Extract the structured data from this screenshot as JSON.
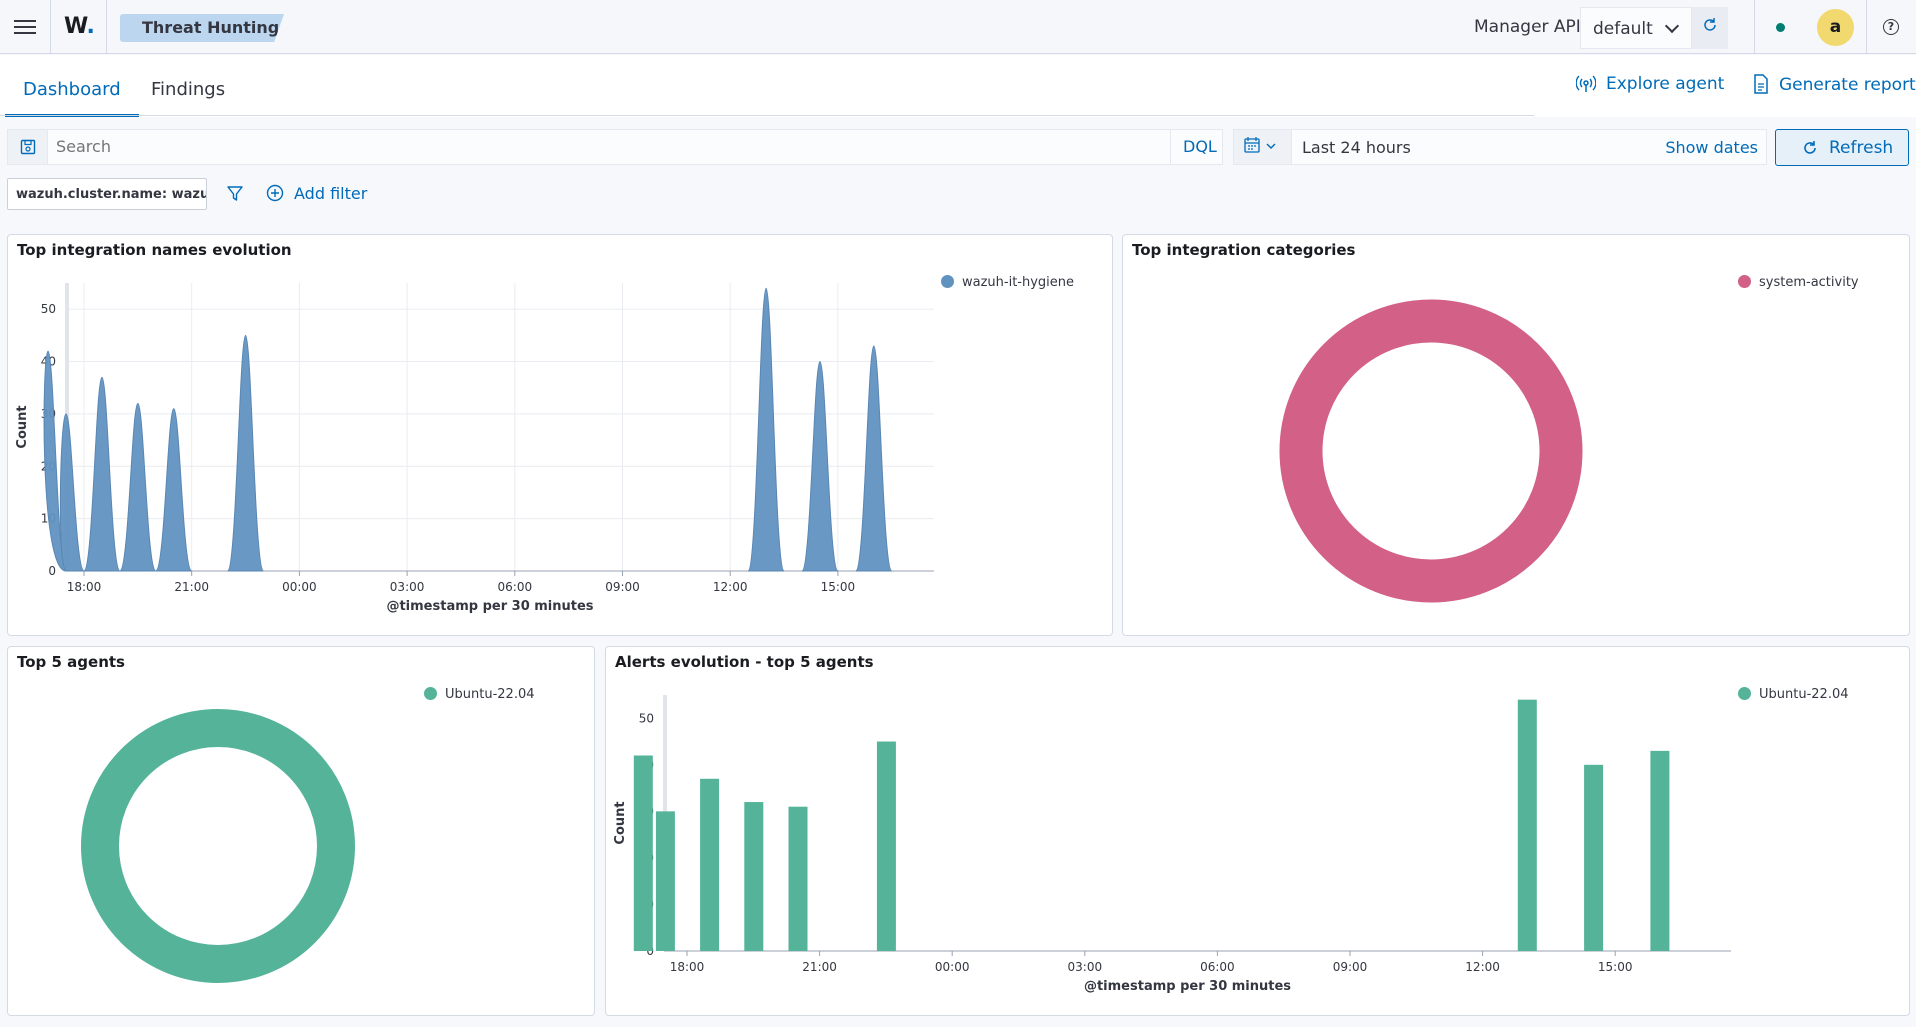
{
  "header": {
    "logo": "W",
    "logo_dot": ".",
    "breadcrumb": "Threat Hunting",
    "manager_label": "Manager API",
    "manager_value": "default",
    "avatar_initial": "a",
    "help": "?"
  },
  "tabs": [
    {
      "label": "Dashboard",
      "active": true
    },
    {
      "label": "Findings",
      "active": false
    }
  ],
  "actions": {
    "explore_agent": "Explore agent",
    "generate_report": "Generate report"
  },
  "search": {
    "placeholder": "Search",
    "dql": "DQL"
  },
  "date": {
    "range": "Last 24 hours",
    "show_dates": "Show dates",
    "refresh": "Refresh"
  },
  "filters": {
    "pill": "wazuh.cluster.name: wazuh",
    "add_filter": "Add filter"
  },
  "colors": {
    "accent": "#006bb8",
    "series_blue": "#6092c0",
    "series_pink": "#d36086",
    "series_green": "#54b399"
  },
  "panels": {
    "integration_evolution": {
      "title": "Top integration names evolution",
      "legend": "wazuh-it-hygiene"
    },
    "integration_categories": {
      "title": "Top integration categories",
      "legend": "system-activity"
    },
    "top_agents": {
      "title": "Top 5 agents",
      "legend": "Ubuntu-22.04"
    },
    "alerts_evolution": {
      "title": "Alerts evolution - top 5 agents",
      "legend": "Ubuntu-22.04"
    }
  },
  "chart_data": [
    {
      "type": "area",
      "title": "Top integration names evolution",
      "xlabel": "@timestamp per 30 minutes",
      "ylabel": "Count",
      "xticks": [
        "18:00",
        "21:00",
        "00:00",
        "03:00",
        "06:00",
        "09:00",
        "12:00",
        "15:00"
      ],
      "yticks": [
        0,
        10,
        20,
        30,
        40,
        50
      ],
      "ylim": [
        0,
        55
      ],
      "series": [
        {
          "name": "wazuh-it-hygiene",
          "points": [
            [
              17.5,
              30
            ],
            [
              18.5,
              37
            ],
            [
              19.5,
              32
            ],
            [
              20.5,
              31
            ],
            [
              22.5,
              45
            ],
            [
              13.0,
              54
            ],
            [
              14.5,
              40
            ],
            [
              16.0,
              43
            ],
            [
              17.0,
              42
            ]
          ]
        }
      ],
      "legend": "top-right"
    },
    {
      "type": "pie",
      "title": "Top integration categories",
      "labels": [
        "system-activity"
      ],
      "values": [
        100
      ],
      "donut": true,
      "legend": "top-right"
    },
    {
      "type": "pie",
      "title": "Top 5 agents",
      "labels": [
        "Ubuntu-22.04"
      ],
      "values": [
        100
      ],
      "donut": true,
      "legend": "top-right"
    },
    {
      "type": "bar",
      "title": "Alerts evolution - top 5 agents",
      "xlabel": "@timestamp per 30 minutes",
      "ylabel": "Count",
      "xticks": [
        "18:00",
        "21:00",
        "00:00",
        "03:00",
        "06:00",
        "09:00",
        "12:00",
        "15:00"
      ],
      "yticks": [
        0,
        10,
        20,
        30,
        40,
        50
      ],
      "ylim": [
        0,
        55
      ],
      "series": [
        {
          "name": "Ubuntu-22.04",
          "points": [
            [
              17.5,
              30
            ],
            [
              18.5,
              37
            ],
            [
              19.5,
              32
            ],
            [
              20.5,
              31
            ],
            [
              22.5,
              45
            ],
            [
              13.0,
              54
            ],
            [
              14.5,
              40
            ],
            [
              16.0,
              43
            ],
            [
              17.0,
              42
            ]
          ]
        }
      ],
      "legend": "top-right"
    }
  ]
}
